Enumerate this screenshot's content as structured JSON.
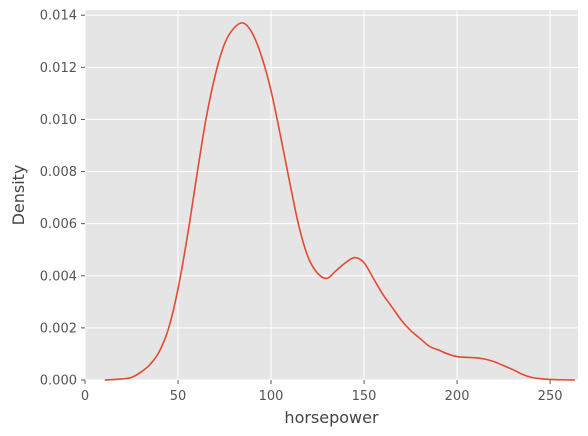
{
  "chart_data": {
    "type": "line",
    "title": "",
    "xlabel": "horsepower",
    "ylabel": "Density",
    "xlim": [
      0,
      265
    ],
    "ylim": [
      0,
      0.0142
    ],
    "grid": true,
    "xticks": [
      0,
      50,
      100,
      150,
      200,
      250
    ],
    "xtick_labels": [
      "0",
      "50",
      "100",
      "150",
      "200",
      "250"
    ],
    "yticks": [
      0,
      0.002,
      0.004,
      0.006,
      0.008,
      0.01,
      0.012,
      0.014
    ],
    "ytick_labels": [
      "0.000",
      "0.002",
      "0.004",
      "0.006",
      "0.008",
      "0.010",
      "0.012",
      "0.014"
    ],
    "series": [
      {
        "color": "#E24A33",
        "x": [
          11,
          20,
          25,
          30,
          35,
          40,
          45,
          50,
          55,
          60,
          65,
          70,
          75,
          80,
          85,
          90,
          95,
          100,
          105,
          110,
          115,
          120,
          125,
          130,
          135,
          140,
          145,
          150,
          155,
          160,
          165,
          170,
          175,
          180,
          185,
          190,
          195,
          200,
          205,
          210,
          215,
          220,
          225,
          230,
          235,
          240,
          245,
          250,
          255,
          263
        ],
        "y": [
          0.0,
          4e-05,
          0.0001,
          0.0003,
          0.0006,
          0.0011,
          0.002,
          0.0035,
          0.0055,
          0.0078,
          0.01,
          0.0117,
          0.0129,
          0.0135,
          0.0137,
          0.0133,
          0.0124,
          0.0111,
          0.0094,
          0.0076,
          0.0059,
          0.0047,
          0.0041,
          0.0039,
          0.0042,
          0.0045,
          0.0047,
          0.0045,
          0.0039,
          0.0033,
          0.0028,
          0.0023,
          0.0019,
          0.0016,
          0.0013,
          0.00115,
          0.001,
          0.0009,
          0.00087,
          0.00085,
          0.0008,
          0.0007,
          0.00055,
          0.0004,
          0.00022,
          0.0001,
          5e-05,
          2e-05,
          1e-05,
          0.0
        ]
      }
    ]
  }
}
